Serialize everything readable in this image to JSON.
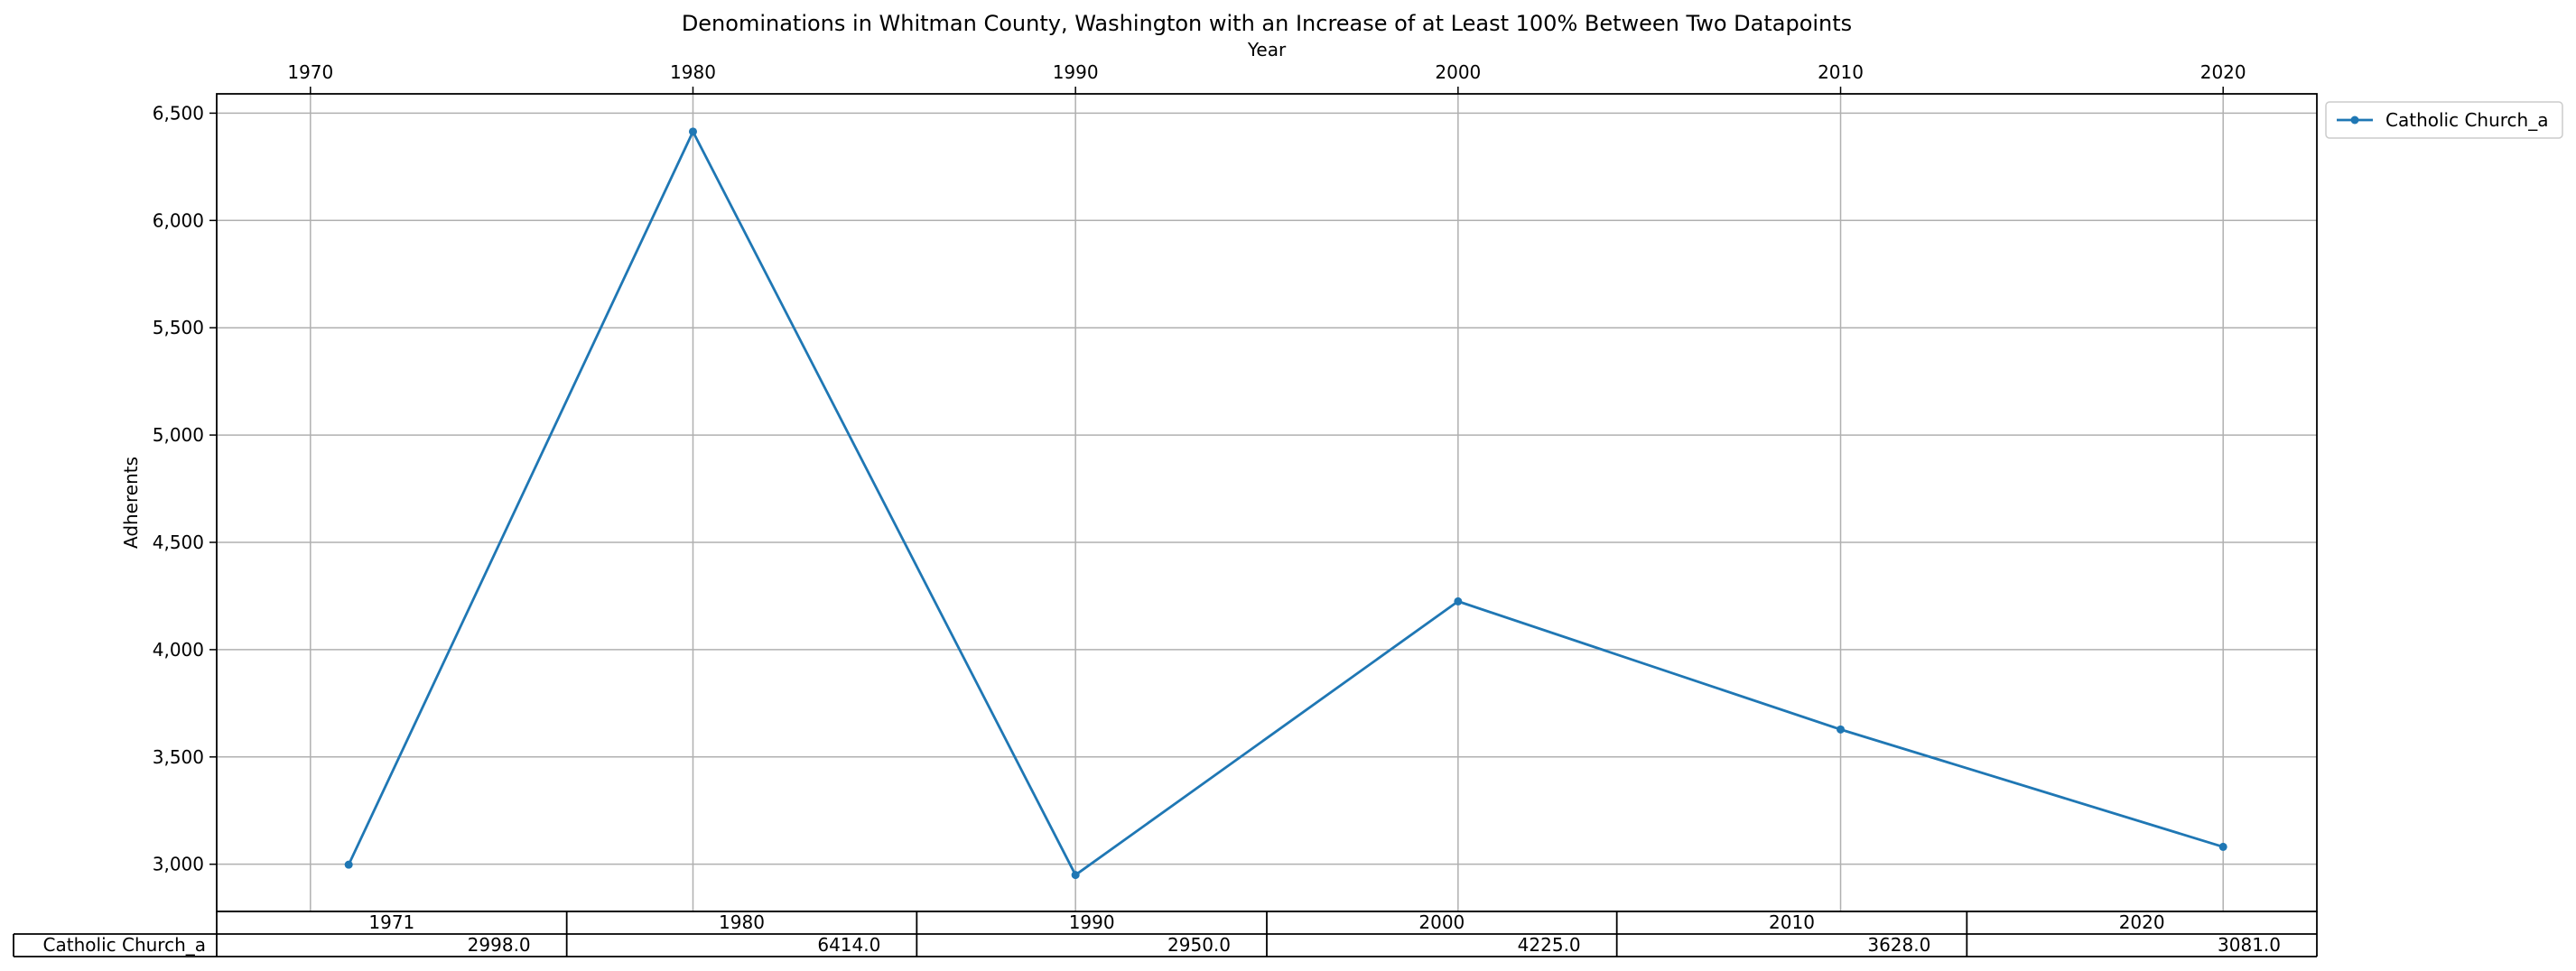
{
  "chart_data": {
    "type": "line",
    "title": "Denominations in Whitman County, Washington with an Increase of at Least 100% Between Two Datapoints",
    "xlabel": "Year",
    "ylabel": "Adherents",
    "x_ticks": [
      "1970",
      "1980",
      "1990",
      "2000",
      "2010",
      "2020"
    ],
    "y_ticks": [
      "3,000",
      "3,500",
      "4,000",
      "4,500",
      "5,000",
      "5,500",
      "6,000",
      "6,500"
    ],
    "x_ticks_values": [
      1970,
      1980,
      1990,
      2000,
      2010,
      2020
    ],
    "y_ticks_values": [
      3000,
      3500,
      4000,
      4500,
      5000,
      5500,
      6000,
      6500
    ],
    "xlim": [
      1967.55,
      1970.0
    ],
    "xlim_full": [
      1967.55,
      2022.45
    ],
    "ylim": [
      2780,
      6590
    ],
    "grid": true,
    "legend_position": "outside-top-right",
    "series_color": "#1f77b4",
    "series": [
      {
        "name": "Catholic Church_a",
        "x": [
          1971,
          1980,
          1990,
          2000,
          2010,
          2020
        ],
        "values": [
          2998,
          6414,
          2950,
          4225,
          3628,
          3081
        ]
      }
    ],
    "table": {
      "columns": [
        "1971",
        "1980",
        "1990",
        "2000",
        "2010",
        "2020"
      ],
      "row_label": "Catholic Church_a",
      "cells": [
        "2998.0",
        "6414.0",
        "2950.0",
        "4225.0",
        "3628.0",
        "3081.0"
      ]
    }
  }
}
